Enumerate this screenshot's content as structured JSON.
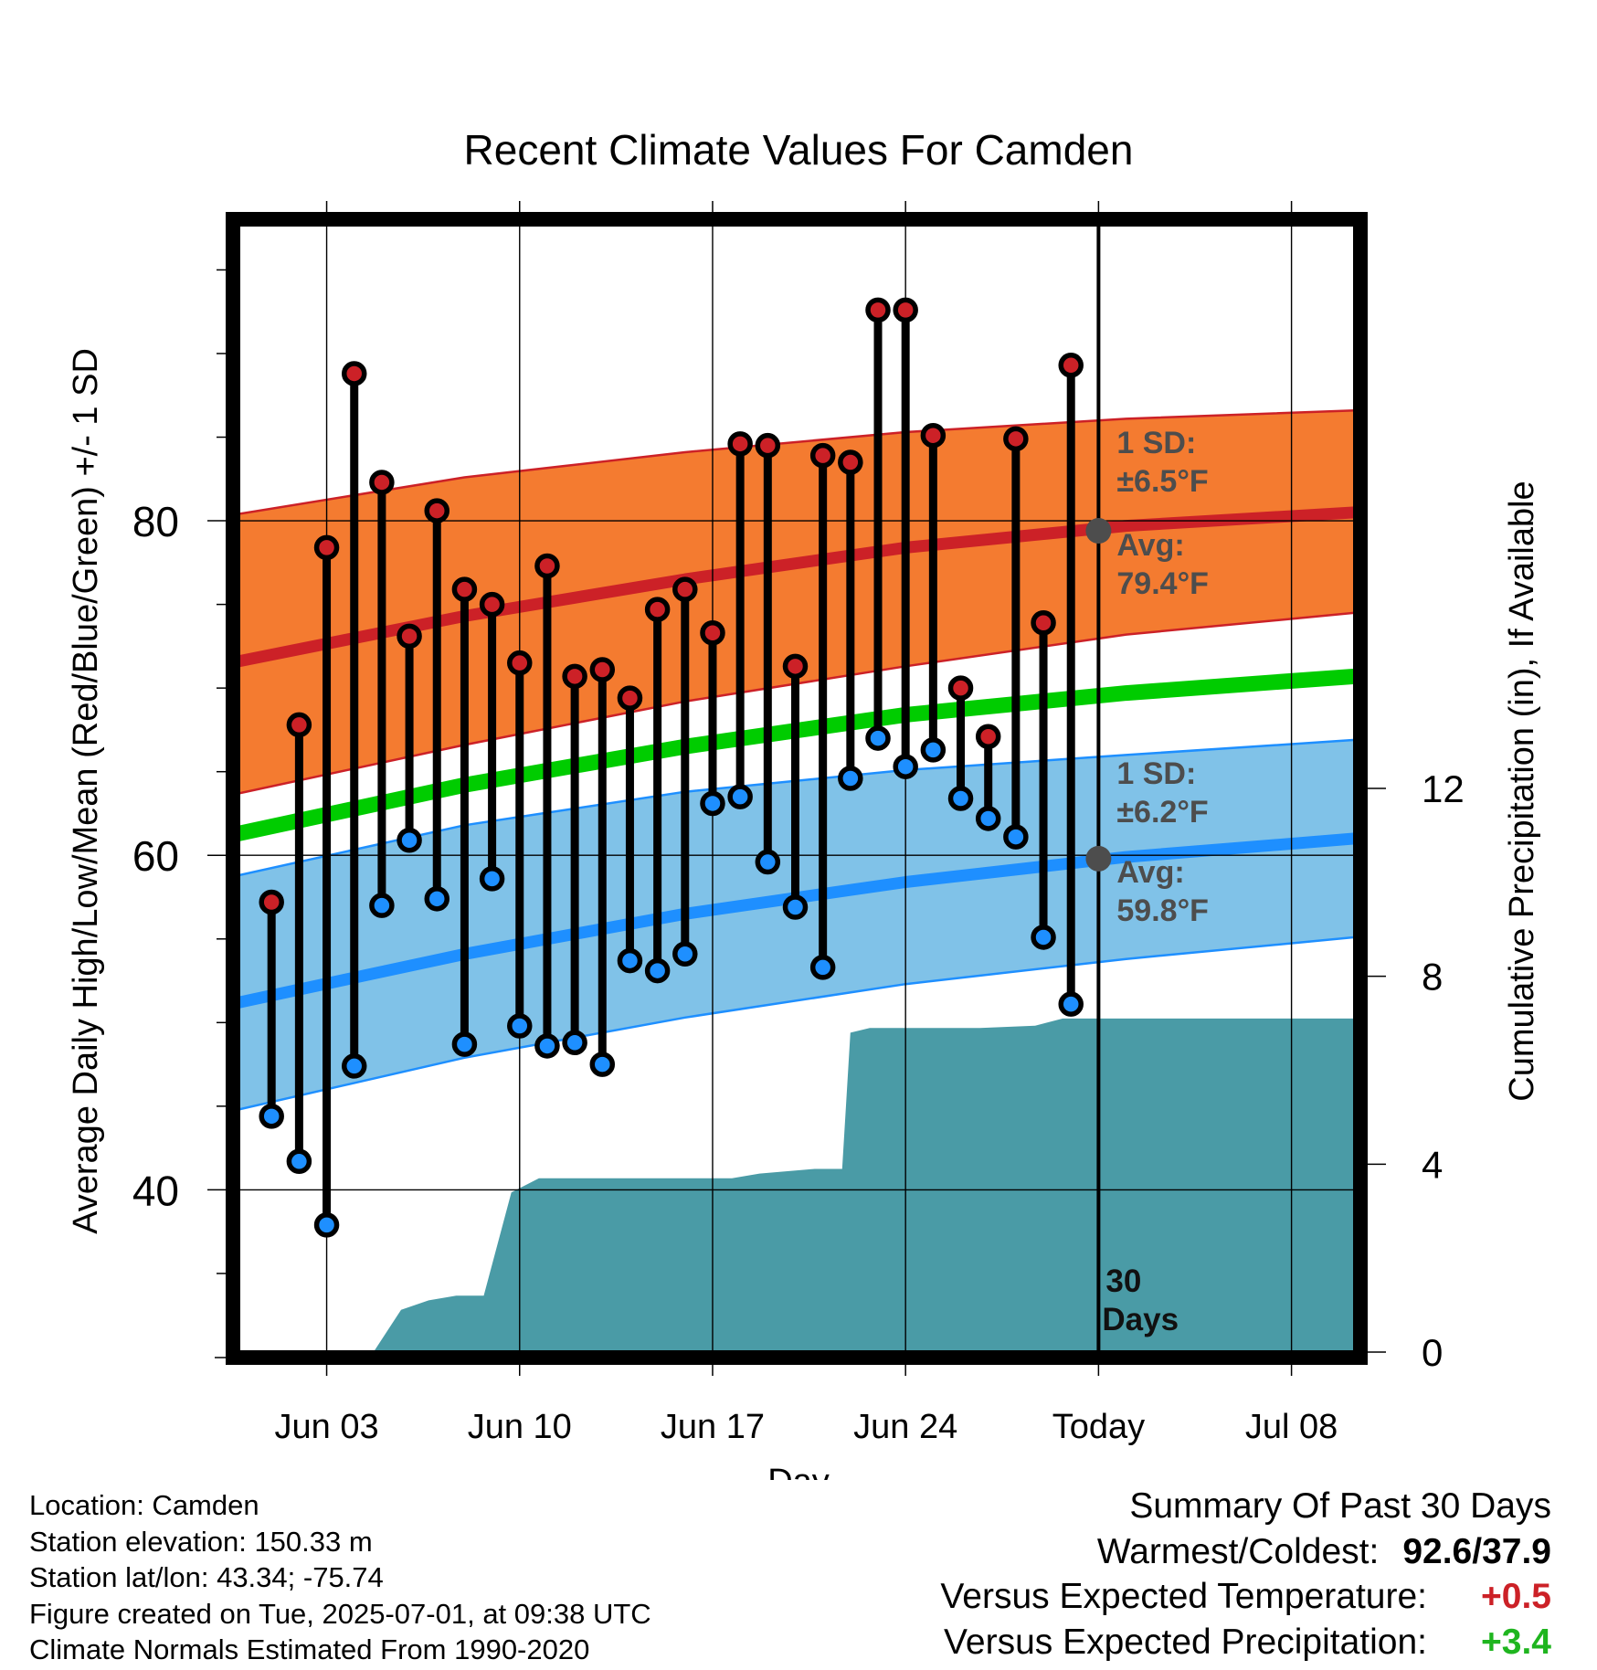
{
  "chart_data": {
    "type": "line",
    "title": "Recent Climate Values For Camden",
    "xlabel": "Day",
    "ylabel": "Average Daily High/Low/Mean (Red/Blue/Green) +/- 1 SD",
    "y2label": "Cumulative Precipitation (in), If Available",
    "x_ticks": [
      "Jun 03",
      "Jun 10",
      "Jun 17",
      "Jun 24",
      "Today",
      "Jul 08"
    ],
    "x_tick_days": [
      3,
      10,
      17,
      24,
      31,
      38
    ],
    "xlim_days": [
      -0.2,
      40.3
    ],
    "y_ticks": [
      40,
      60,
      80
    ],
    "ylim": [
      30.3,
      97.7
    ],
    "y2_ticks": [
      0,
      4,
      8,
      12
    ],
    "y2lim": [
      0,
      24
    ],
    "grid": true,
    "series": [
      {
        "name": "High",
        "x_days": [
          1,
          2,
          3,
          4,
          5,
          6,
          7,
          8,
          9,
          10,
          11,
          12,
          13,
          14,
          15,
          16,
          17,
          18,
          19,
          20,
          21,
          22,
          23,
          24,
          25,
          26,
          27,
          28,
          29,
          30
        ],
        "values": [
          57.2,
          67.8,
          78.4,
          88.8,
          82.3,
          73.1,
          80.6,
          75.9,
          75.0,
          71.5,
          77.3,
          70.7,
          71.1,
          69.4,
          74.7,
          75.9,
          73.3,
          84.6,
          84.5,
          71.3,
          83.9,
          83.5,
          92.6,
          92.6,
          85.1,
          70.0,
          67.1,
          84.9,
          73.9,
          89.3
        ]
      },
      {
        "name": "Low",
        "x_days": [
          1,
          2,
          3,
          4,
          5,
          6,
          7,
          8,
          9,
          10,
          11,
          12,
          13,
          14,
          15,
          16,
          17,
          18,
          19,
          20,
          21,
          22,
          23,
          24,
          25,
          26,
          27,
          28,
          29,
          30
        ],
        "values": [
          44.4,
          41.7,
          37.9,
          47.4,
          57.0,
          60.9,
          57.4,
          48.7,
          58.6,
          49.8,
          48.6,
          48.8,
          47.5,
          53.7,
          53.1,
          54.1,
          63.1,
          63.5,
          59.6,
          56.9,
          53.3,
          64.6,
          67.0,
          65.3,
          66.3,
          63.4,
          62.2,
          61.1,
          55.1,
          51.1
        ]
      }
    ],
    "normals": {
      "x_days": [
        -0.2,
        8,
        16,
        24,
        32,
        40.3
      ],
      "high_avg": [
        71.6,
        74.3,
        76.5,
        78.4,
        79.7,
        80.5
      ],
      "high_upper": [
        80.4,
        82.6,
        84.1,
        85.3,
        86.1,
        86.6
      ],
      "high_lower": [
        63.7,
        66.6,
        69.2,
        71.3,
        73.2,
        74.5
      ],
      "mean_avg": [
        61.3,
        64.2,
        66.5,
        68.4,
        69.7,
        70.7
      ],
      "low_avg": [
        51.2,
        54.1,
        56.5,
        58.4,
        59.9,
        61.0
      ],
      "low_upper": [
        58.8,
        61.8,
        63.8,
        65.1,
        66.0,
        66.9
      ],
      "low_lower": [
        44.8,
        47.9,
        50.3,
        52.3,
        53.8,
        55.1
      ]
    },
    "precipitation": {
      "name": "Cumulative Precipitation (in)",
      "x_days": [
        4.7,
        5.7,
        6.7,
        7.7,
        8.7,
        9.7,
        10.7,
        11.7,
        17.7,
        18.7,
        20.7,
        21.7,
        22.0,
        22.7,
        23.7,
        26.7,
        28.7,
        29.7,
        30.7,
        40.3
      ],
      "values": [
        0,
        0.9,
        1.1,
        1.2,
        1.2,
        3.4,
        3.7,
        3.7,
        3.7,
        3.8,
        3.9,
        3.9,
        6.8,
        6.9,
        6.9,
        6.9,
        6.95,
        7.1,
        7.1,
        7.1
      ]
    },
    "annotations": {
      "high_sd": {
        "line1": "1 SD:",
        "line2": "±6.5°F"
      },
      "high_avg": {
        "line1": "Avg:",
        "line2": "79.4°F",
        "value": 79.4
      },
      "low_sd": {
        "line1": "1 SD:",
        "line2": "±6.2°F"
      },
      "low_avg": {
        "line1": "Avg:",
        "line2": "59.8°F",
        "value": 59.8
      },
      "window": {
        "line1": "30",
        "line2": "Days"
      }
    },
    "colors": {
      "high": "#cc2127",
      "high_band": "#f47b30",
      "mean": "#00cc00",
      "low": "#1e8fff",
      "low_band": "#80c2e8",
      "precip": "#4a9ba6",
      "annotation": "#4d4d4d"
    }
  },
  "info": {
    "location": "Location: Camden",
    "elevation": "Station elevation: 150.33 m",
    "latlon": "Station lat/lon: 43.34; -75.74",
    "created": "Figure created on Tue, 2025-07-01, at 09:38 UTC",
    "normals": "Climate Normals Estimated From 1990-2020"
  },
  "summary": {
    "title": "Summary Of Past 30 Days",
    "warmest_label": "Warmest/Coldest:",
    "warmest_value": "92.6/37.9",
    "temp_label": "Versus Expected Temperature:",
    "temp_value": "+0.5",
    "temp_color": "#cc2127",
    "precip_label": "Versus Expected Precipitation:",
    "precip_value": "+3.4",
    "precip_color": "#1fb51f"
  }
}
